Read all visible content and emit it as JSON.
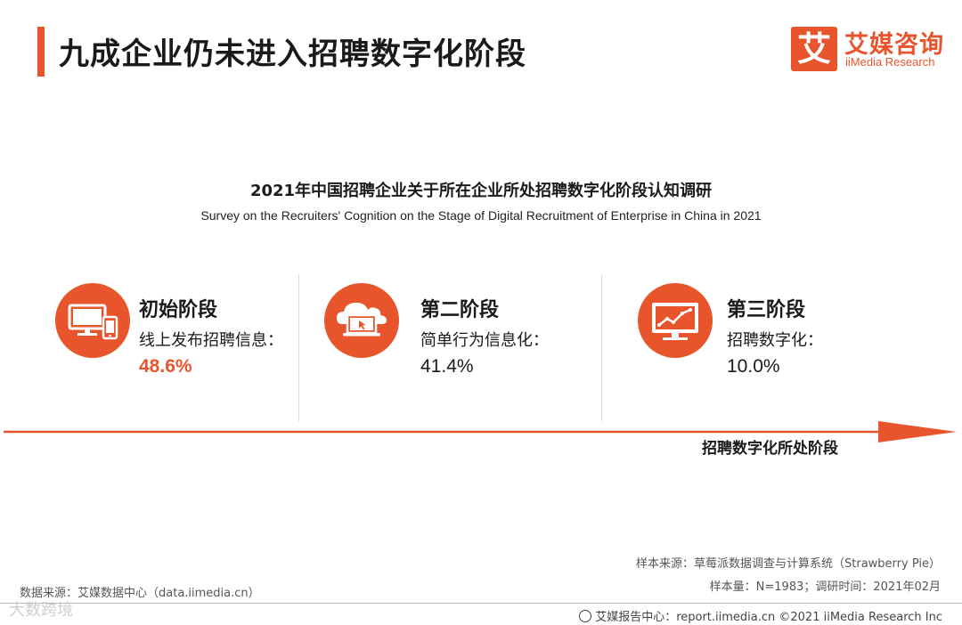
{
  "page_title": "九成企业仍未进入招聘数字化阶段",
  "logo": {
    "glyph": "艾",
    "name_cn": "艾媒咨询",
    "name_en": "iiMedia Research"
  },
  "chart_data": {
    "type": "table",
    "title": "2021年中国招聘企业关于所在企业所处招聘数字化阶段认知调研",
    "subtitle": "Survey on the Recruiters' Cognition on the Stage of Digital Recruitment of Enterprise in China in 2021",
    "x_axis_label": "招聘数字化所处阶段",
    "stages": [
      {
        "name": "初始阶段",
        "description": "线上发布招聘信息：",
        "value": 48.6,
        "value_label": "48.6%",
        "icon": "computer-phone-icon",
        "highlight": true
      },
      {
        "name": "第二阶段",
        "description": "简单行为信息化：",
        "value": 41.4,
        "value_label": "41.4%",
        "icon": "cloud-laptop-icon",
        "highlight": false
      },
      {
        "name": "第三阶段",
        "description": "招聘数字化：",
        "value": 10.0,
        "value_label": "10.0%",
        "icon": "monitor-chart-icon",
        "highlight": false
      }
    ]
  },
  "sources": {
    "sample_source": "样本来源：草莓派数据调查与计算系统（Strawberry Pie）",
    "sample_size": "样本量：N=1983；调研时间：2021年02月",
    "data_source": "数据来源：艾媒数据中心（data.iimedia.cn）",
    "footer": "艾媒报告中心：report.iimedia.cn ©2021  iiMedia Research  Inc",
    "watermark": "大数跨境"
  },
  "colors": {
    "accent": "#e8552d",
    "text": "#1a1a1a",
    "muted": "#555555"
  }
}
